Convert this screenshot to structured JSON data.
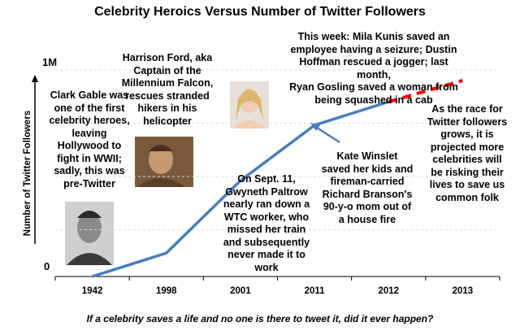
{
  "chart_data": {
    "type": "line",
    "title": "Celebrity Heroics Versus Number of Twitter Followers",
    "ylabel": "Number of Twitter Followers",
    "yticks": [
      "0",
      "1M"
    ],
    "categories": [
      "1942",
      "1998",
      "2001",
      "2011",
      "2012",
      "2013"
    ],
    "series": [
      {
        "values": [
          0.0,
          0.11,
          0.45,
          0.71,
          0.82,
          null
        ],
        "style": "solid",
        "color": "#4a7ebb"
      },
      {
        "values": [
          null,
          null,
          null,
          null,
          0.82,
          0.92
        ],
        "style": "dashed",
        "color": "#ff0000"
      }
    ],
    "grid": "horizontal-dashed",
    "annotations": {
      "clark": "Clark Gable was\none of the first\ncelebrity heroes,\nleaving\nHollywood to\nfight in WWII;\nsadly, this was\npre-Twitter",
      "harrison": "Harrison Ford, aka\nCaptain of the\nMillennium Falcon,\nrescues stranded\nhikers in his\nhelicopter",
      "gwyneth": "On Sept. 11,\nGwyneth Paltrow\nnearly ran down a\nWTC worker, who\nmissed her train\nand subsequently\nnever made it to\nwork",
      "kate": "Kate Winslet\nsaved her kids and\nfireman-carried\nRichard Branson's\n90-y-o mom out of\na house fire",
      "this_week": "This week: Mila Kunis saved an\nemployee having a seizure; Dustin\nHoffman rescued a jogger; last month,\nRyan Gosling saved a woman from\nbeing squashed in a cab",
      "race": "As the race for\nTwitter followers\ngrows, it is\nprojected more\ncelebrities will\nbe risking their\nlives to save us\ncommon folk"
    },
    "caption": "If a celebrity saves a life and no one is there to tweet it, did it ever happen?"
  },
  "colors": {
    "line": "#4a7ebb",
    "projection": "#ff0000",
    "grid": "#d9d9d9",
    "axis": "#000000"
  }
}
